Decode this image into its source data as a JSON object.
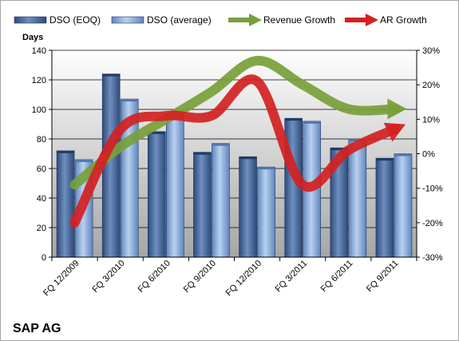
{
  "chart_data": {
    "type": "bar",
    "title": "SAP AG",
    "ylabel": "Days",
    "ylim": [
      0,
      140
    ],
    "yticks": [
      0,
      20,
      40,
      60,
      80,
      100,
      120,
      140
    ],
    "y2lim": [
      -30,
      30
    ],
    "y2ticks": [
      "-30%",
      "-20%",
      "-10%",
      "0%",
      "10%",
      "20%",
      "30%"
    ],
    "legend_position": "top",
    "grid": true,
    "categories": [
      "FQ 12/2009",
      "FQ 3/2010",
      "FQ 6/2010",
      "FQ 9/2010",
      "FQ 12/2010",
      "FQ 3/2011",
      "FQ 6/2011",
      "FQ 9/2011"
    ],
    "series": [
      {
        "name": "DSO (EOQ)",
        "type": "bar",
        "axis": "left",
        "color": "#4a6fa5",
        "values": [
          72,
          124,
          85,
          71,
          68,
          94,
          74,
          67
        ]
      },
      {
        "name": "DSO (average)",
        "type": "bar",
        "axis": "left",
        "color": "#8db3e2",
        "values": [
          66,
          107,
          97,
          77,
          61,
          92,
          80,
          70
        ]
      },
      {
        "name": "Revenue Growth",
        "type": "line",
        "axis": "right",
        "color": "#77a03a",
        "values": [
          -9,
          2,
          10,
          18,
          27,
          20,
          13,
          13
        ]
      },
      {
        "name": "AR Growth",
        "type": "line",
        "axis": "right",
        "color": "#d42121",
        "values": [
          -20,
          7,
          11,
          11,
          21,
          -9,
          1,
          7
        ]
      }
    ]
  }
}
